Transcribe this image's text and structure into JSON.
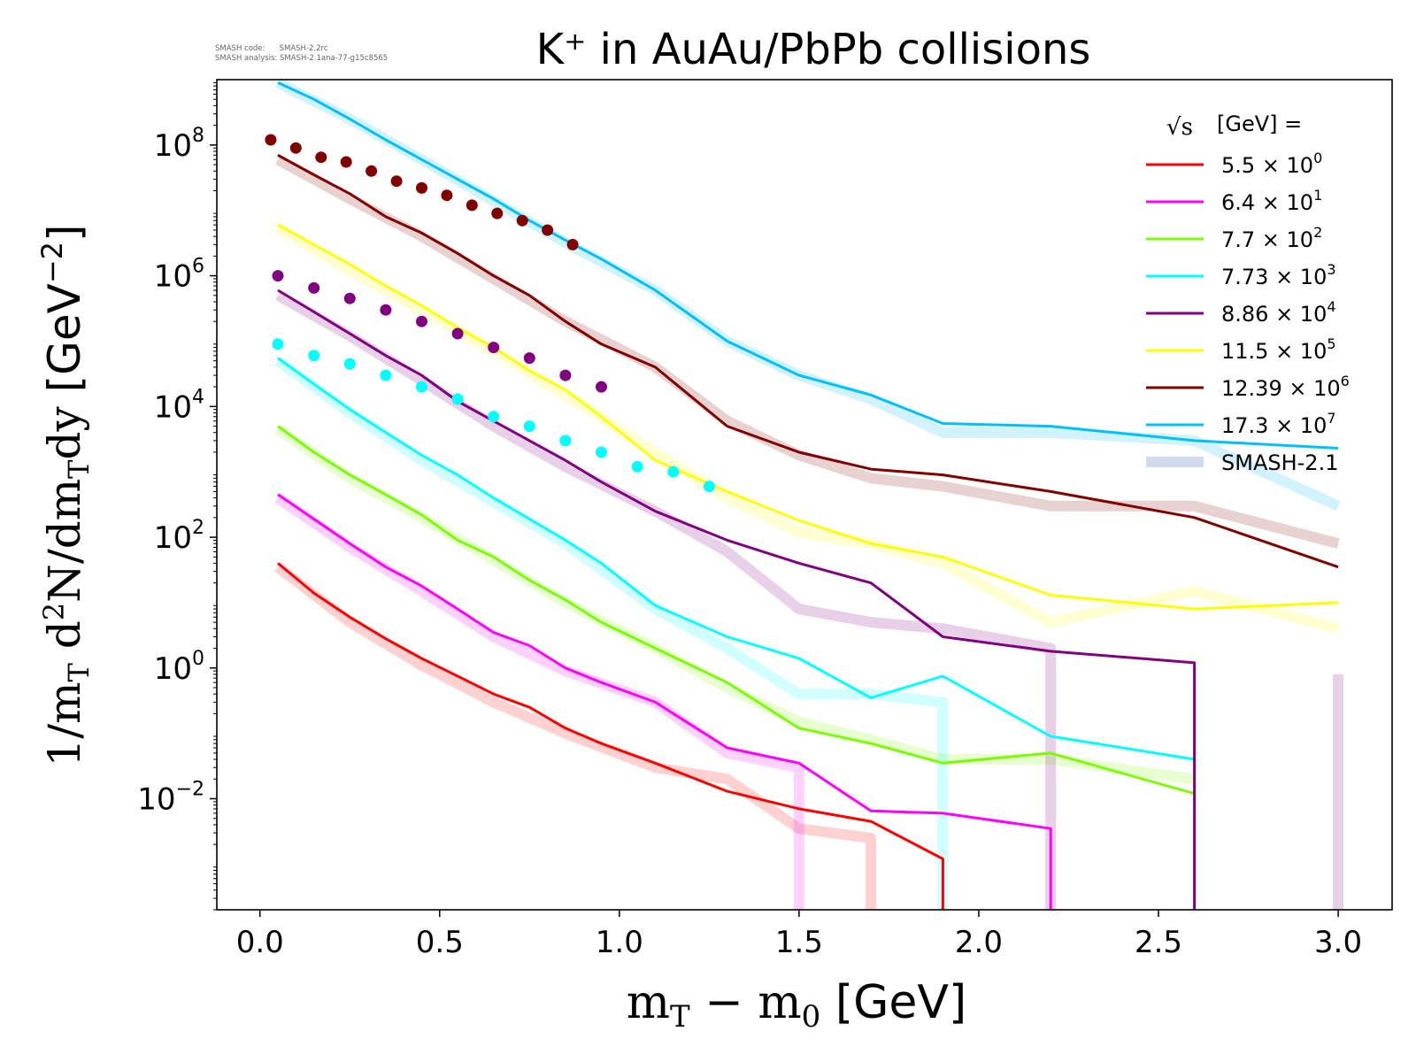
{
  "watermark": {
    "line1": "SMASH code:      SMASH-2.2rc",
    "line2": "SMASH analysis: SMASH-2.1ana-77-g15c8565"
  },
  "chart_data": {
    "type": "line",
    "title": "K⁺ in AuAu/PbPb collisions",
    "xlabel": "m_T − m_0 [GeV]",
    "ylabel": "1/m_T d²N/dm_T dy [GeV⁻²]",
    "xlim": [
      -0.12,
      3.15
    ],
    "ylim": [
      0.0002,
      1000000000
    ],
    "yscale": "log",
    "x_ticks": [
      "0.0",
      "0.5",
      "1.0",
      "1.5",
      "2.0",
      "2.5",
      "3.0"
    ],
    "y_ticks": [
      {
        "base": "10",
        "exp": "−2",
        "value": 0.01
      },
      {
        "base": "10",
        "exp": "0",
        "value": 1
      },
      {
        "base": "10",
        "exp": "2",
        "value": 100
      },
      {
        "base": "10",
        "exp": "4",
        "value": 10000
      },
      {
        "base": "10",
        "exp": "6",
        "value": 1000000
      },
      {
        "base": "10",
        "exp": "8",
        "value": 100000000
      }
    ],
    "legend": {
      "title_sqrt": "√s",
      "title_rest": "[GeV] =",
      "placement": "top-right",
      "entries": [
        {
          "mantissa": "5.5",
          "exp": "0",
          "color": "#ff0000"
        },
        {
          "mantissa": "6.4",
          "exp": "1",
          "color": "#ff00ff"
        },
        {
          "mantissa": "7.7",
          "exp": "2",
          "color": "#7cfc00"
        },
        {
          "mantissa": "7.73",
          "exp": "3",
          "color": "#00ffff"
        },
        {
          "mantissa": "8.86",
          "exp": "4",
          "color": "#800080"
        },
        {
          "mantissa": "11.5",
          "exp": "5",
          "color": "#ffff00"
        },
        {
          "mantissa": "12.39",
          "exp": "6",
          "color": "#800000"
        },
        {
          "mantissa": "17.3",
          "exp": "7",
          "color": "#00bfff"
        }
      ],
      "smash_label": "SMASH-2.1"
    },
    "series": [
      {
        "color": "#ff0000",
        "x": [
          0.05,
          0.15,
          0.25,
          0.35,
          0.45,
          0.55,
          0.65,
          0.75,
          0.85,
          0.95,
          1.1,
          1.3,
          1.5,
          1.7,
          1.9,
          1.9
        ],
        "y": [
          40,
          14,
          6,
          2.8,
          1.4,
          0.75,
          0.4,
          0.25,
          0.12,
          0.07,
          0.035,
          0.013,
          0.007,
          0.0045,
          0.0012,
          0.0002
        ]
      },
      {
        "color": "#ff00ff",
        "x": [
          0.05,
          0.15,
          0.25,
          0.35,
          0.45,
          0.55,
          0.65,
          0.75,
          0.85,
          0.95,
          1.1,
          1.3,
          1.5,
          1.7,
          1.9,
          2.2,
          2.2
        ],
        "y": [
          450,
          190,
          80,
          35,
          18,
          8,
          3.5,
          2.2,
          1.0,
          0.6,
          0.3,
          0.06,
          0.035,
          0.0065,
          0.006,
          0.0035,
          0.0002
        ]
      },
      {
        "color": "#7cfc00",
        "x": [
          0.05,
          0.15,
          0.25,
          0.35,
          0.45,
          0.55,
          0.65,
          0.75,
          0.85,
          0.95,
          1.1,
          1.3,
          1.5,
          1.7,
          1.9,
          2.2,
          2.6
        ],
        "y": [
          5000,
          2000,
          900,
          450,
          220,
          90,
          50,
          22,
          11,
          5,
          2,
          0.6,
          0.12,
          0.07,
          0.035,
          0.05,
          0.012
        ]
      },
      {
        "color": "#00ffff",
        "x": [
          0.05,
          0.15,
          0.25,
          0.35,
          0.45,
          0.55,
          0.65,
          0.75,
          0.85,
          0.95,
          1.1,
          1.3,
          1.5,
          1.7,
          1.9,
          2.2,
          2.6
        ],
        "y": [
          55000,
          22000,
          9000,
          4000,
          1800,
          900,
          400,
          190,
          90,
          40,
          9,
          3,
          1.4,
          0.35,
          0.75,
          0.09,
          0.04
        ]
      },
      {
        "color": "#800080",
        "x": [
          0.05,
          0.15,
          0.25,
          0.35,
          0.45,
          0.55,
          0.65,
          0.75,
          0.85,
          0.95,
          1.1,
          1.3,
          1.5,
          1.7,
          1.9,
          2.2,
          2.6,
          2.6
        ],
        "y": [
          600000,
          280000,
          130000,
          60000,
          30000,
          12000,
          6000,
          3000,
          1500,
          700,
          250,
          90,
          40,
          20,
          3,
          1.8,
          1.2,
          0.0002
        ]
      },
      {
        "color": "#ffff00",
        "x": [
          0.05,
          0.15,
          0.25,
          0.35,
          0.45,
          0.55,
          0.65,
          0.75,
          0.85,
          0.95,
          1.1,
          1.3,
          1.5,
          1.7,
          1.9,
          2.2,
          2.6,
          3.0
        ],
        "y": [
          6000000,
          3000000,
          1500000,
          700000,
          350000,
          160000,
          80000,
          35000,
          18000,
          7000,
          1500,
          500,
          180,
          80,
          50,
          13,
          8,
          10
        ]
      },
      {
        "color": "#800000",
        "x": [
          0.05,
          0.15,
          0.25,
          0.35,
          0.45,
          0.55,
          0.65,
          0.75,
          0.85,
          0.95,
          1.1,
          1.3,
          1.5,
          1.7,
          1.9,
          2.2,
          2.6,
          3.0
        ],
        "y": [
          70000000,
          35000000,
          18000000,
          8000000,
          4500000,
          2200000,
          1000000,
          500000,
          200000,
          90000,
          40000,
          5000,
          2000,
          1100,
          900,
          500,
          200,
          35
        ]
      },
      {
        "color": "#00bfff",
        "x": [
          0.05,
          0.15,
          0.25,
          0.35,
          0.45,
          0.55,
          0.65,
          0.75,
          0.85,
          0.95,
          1.1,
          1.3,
          1.5,
          1.7,
          1.9,
          2.2,
          2.6,
          3.0
        ],
        "y": [
          900000000,
          500000000,
          250000000,
          120000000,
          60000000,
          30000000,
          15000000,
          7000000,
          3500000,
          1800000,
          600000,
          100000,
          30000,
          15000,
          5500,
          5000,
          3000,
          2300
        ]
      }
    ],
    "smash_bands": [
      {
        "color": "#ff0000",
        "x": [
          0.05,
          0.25,
          0.45,
          0.65,
          0.85,
          1.1,
          1.3,
          1.5,
          1.7,
          1.7
        ],
        "y": [
          35,
          5,
          1.1,
          0.3,
          0.1,
          0.03,
          0.02,
          0.0035,
          0.0025,
          0.0002
        ]
      },
      {
        "color": "#ff00ff",
        "x": [
          0.05,
          0.25,
          0.45,
          0.65,
          0.85,
          1.1,
          1.3,
          1.5,
          1.5
        ],
        "y": [
          400,
          70,
          15,
          3,
          0.9,
          0.3,
          0.05,
          0.03,
          0.0002
        ]
      },
      {
        "color": "#7cfc00",
        "x": [
          0.05,
          0.25,
          0.45,
          0.65,
          0.85,
          1.1,
          1.3,
          1.5,
          1.7,
          1.9,
          2.2,
          2.6
        ],
        "y": [
          4500,
          800,
          200,
          45,
          10,
          2,
          0.5,
          0.15,
          0.08,
          0.04,
          0.04,
          0.02
        ]
      },
      {
        "color": "#00ffff",
        "x": [
          0.05,
          0.25,
          0.45,
          0.65,
          0.85,
          1.1,
          1.3,
          1.5,
          1.7,
          1.9,
          1.9
        ],
        "y": [
          50000,
          8000,
          1500,
          350,
          80,
          8,
          2,
          0.4,
          0.4,
          0.3,
          0.0002
        ]
      },
      {
        "color": "#800080",
        "x": [
          0.05,
          0.25,
          0.45,
          0.65,
          0.85,
          1.1,
          1.3,
          1.5,
          1.7,
          1.9,
          2.2,
          2.2
        ],
        "y": [
          500000,
          120000,
          25000,
          5000,
          1200,
          250,
          60,
          8,
          5,
          4,
          2,
          0.0002
        ]
      },
      {
        "color": "#ffff00",
        "x": [
          0.05,
          0.25,
          0.45,
          0.65,
          0.85,
          1.1,
          1.3,
          1.5,
          1.7,
          1.9,
          2.2,
          2.6,
          3.0
        ],
        "y": [
          5500000,
          1200000,
          300000,
          70000,
          15000,
          2000,
          400,
          120,
          80,
          40,
          5,
          15,
          4
        ]
      },
      {
        "color": "#800000",
        "x": [
          0.05,
          0.25,
          0.45,
          0.65,
          0.85,
          1.1,
          1.3,
          1.5,
          1.7,
          1.9,
          2.2,
          2.6,
          3.0
        ],
        "y": [
          60000000,
          15000000,
          4000000,
          900000,
          200000,
          40000,
          6000,
          1800,
          800,
          600,
          300,
          300,
          80
        ]
      },
      {
        "color": "#00bfff",
        "x": [
          0.05,
          0.25,
          0.45,
          0.65,
          0.85,
          1.1,
          1.3,
          1.5,
          1.7,
          1.9,
          2.2,
          2.6,
          3.0
        ],
        "y": [
          900000000,
          250000000,
          60000000,
          14000000,
          3200000,
          600000,
          100000,
          30000,
          13000,
          4000,
          4000,
          3000,
          300
        ]
      },
      {
        "color": "#800080",
        "x": [
          3.0,
          3.0
        ],
        "y": [
          0.8,
          0.0002
        ]
      }
    ],
    "data_points": [
      {
        "color": "#800000",
        "x": [
          0.03,
          0.1,
          0.17,
          0.24,
          0.31,
          0.38,
          0.45,
          0.52,
          0.59,
          0.66,
          0.73,
          0.8,
          0.87
        ],
        "y": [
          120000000,
          90000000,
          65000000,
          55000000,
          40000000,
          28000000,
          22000000,
          17000000,
          12000000,
          9000000,
          7000000,
          5000000,
          3000000
        ]
      },
      {
        "color": "#800080",
        "x": [
          0.05,
          0.15,
          0.25,
          0.35,
          0.45,
          0.55,
          0.65,
          0.75,
          0.85,
          0.95
        ],
        "y": [
          1000000,
          650000,
          450000,
          300000,
          200000,
          130000,
          80000,
          55000,
          30000,
          20000
        ]
      },
      {
        "color": "#00ffff",
        "x": [
          0.05,
          0.15,
          0.25,
          0.35,
          0.45,
          0.55,
          0.65,
          0.75,
          0.85,
          0.95,
          1.05,
          1.15,
          1.25
        ],
        "y": [
          90000,
          60000,
          45000,
          30000,
          20000,
          13000,
          7000,
          5000,
          3000,
          2000,
          1200,
          1000,
          600
        ]
      }
    ]
  }
}
